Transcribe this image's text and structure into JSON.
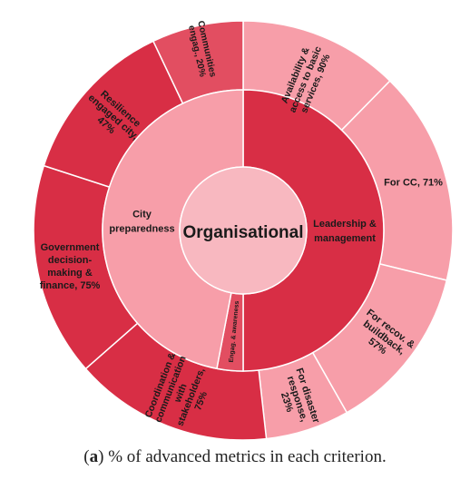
{
  "chart_data": {
    "type": "sunburst",
    "center_label": "Organisational",
    "inner_ring": [
      {
        "name": "Leadership & management",
        "color": "#d82e45",
        "value": 50
      },
      {
        "name": "Engag. & awareness",
        "color": "#e24e61",
        "value": 3
      },
      {
        "name": "City preparedness",
        "color": "#f79ea9",
        "value": 47
      }
    ],
    "outer_ring": [
      {
        "name": "Availability & access to basic services, 90%",
        "parent": "City preparedness",
        "color": "#f79ea9",
        "value": 10.5
      },
      {
        "name": "For CC, 71%",
        "parent": "City preparedness",
        "color": "#f79ea9",
        "value": 14
      },
      {
        "name": "For recov. & buildback, 57%",
        "parent": "City preparedness",
        "color": "#f79ea9",
        "value": 11
      },
      {
        "name": "For disaster response, 23%",
        "parent": "City preparedness",
        "color": "#f79ea9",
        "value": 5.5
      },
      {
        "name": "Coordination & communication with stakeholders, 75%",
        "parent": "Leadership & management",
        "color": "#d82e45",
        "value": 13
      },
      {
        "name": "Government decision-making & finance, 75%",
        "parent": "Leadership & management",
        "color": "#d82e45",
        "value": 14
      },
      {
        "name": "Resilience engaged city, 47%",
        "parent": "Leadership & management",
        "color": "#d82e45",
        "value": 11
      },
      {
        "name": "Communities engag., 20%",
        "parent": "Engag. & awareness",
        "color": "#e24e61",
        "value": 6
      }
    ]
  },
  "caption": {
    "letter": "a",
    "text": "% of advanced metrics in each criterion."
  }
}
